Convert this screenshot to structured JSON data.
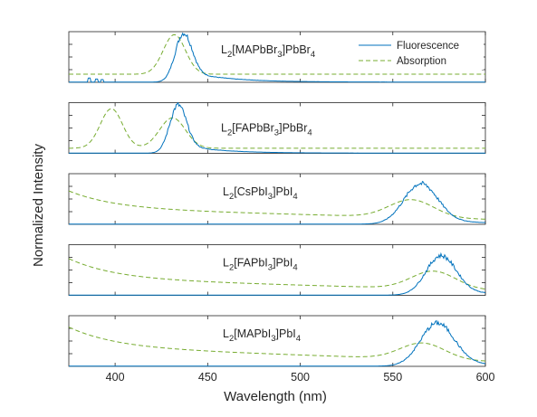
{
  "chart_data": {
    "type": "line",
    "ylabel": "Normalized Intensity",
    "xlabel": "Wavelength (nm)",
    "xlim": [
      375,
      600
    ],
    "xticks": [
      400,
      450,
      500,
      550,
      600
    ],
    "legend": {
      "position": "top-right",
      "entries": [
        "Fluorescence",
        "Absorption"
      ]
    },
    "colors": {
      "fluorescence": "#0072BD",
      "absorption": "#77AC30"
    },
    "panels": [
      {
        "label": {
          "pre": "L",
          "s1": "2",
          "mid": "[MAPbBr",
          "s2": "3",
          "post": "]PbBr",
          "s3": "4"
        },
        "absorption": {
          "baseline": 0.16,
          "peaks": [
            [
              432,
              0.78,
              6
            ]
          ],
          "slope": 0.0,
          "uv": 0.0,
          "noise": 0.0
        },
        "fluorescence": {
          "peaks": [
            [
              437,
              0.97,
              4.5
            ]
          ],
          "tail": 0.22,
          "tailDecay": 22,
          "spikes": [
            [
              386,
              0.08
            ],
            [
              390,
              0.06
            ],
            [
              393,
              0.05
            ]
          ]
        }
      },
      {
        "label": {
          "pre": "L",
          "s1": "2",
          "mid": "[FAPbBr",
          "s2": "3",
          "post": "]PbBr",
          "s3": "4"
        },
        "absorption": {
          "baseline": 0.1,
          "peaks": [
            [
              398,
              0.78,
              6
            ],
            [
              431,
              0.6,
              7
            ]
          ],
          "slope": 0.0,
          "uv": 0.0,
          "noise": 0.0
        },
        "fluorescence": {
          "peaks": [
            [
              434,
              0.95,
              4.5
            ]
          ],
          "tail": 0.18,
          "tailDecay": 20,
          "spikes": []
        }
      },
      {
        "label": {
          "pre": "L",
          "s1": "2",
          "mid": "[CsPbI",
          "s2": "3",
          "post": "]PbI",
          "s3": "4"
        },
        "absorption": {
          "baseline": 0.1,
          "peaks": [
            [
              560,
              0.35,
              12
            ]
          ],
          "slope": 0.42,
          "uv": 0.35,
          "noise": 0.0
        },
        "fluorescence": {
          "peaks": [
            [
              565,
              0.8,
              9
            ]
          ],
          "tail": 0.12,
          "tailDecay": 25,
          "spikes": []
        }
      },
      {
        "label": {
          "pre": "L",
          "s1": "2",
          "mid": "[FAPbI",
          "s2": "3",
          "post": "]PbI",
          "s3": "4"
        },
        "absorption": {
          "baseline": 0.1,
          "peaks": [
            [
              572,
              0.35,
              12
            ]
          ],
          "slope": 0.45,
          "uv": 0.4,
          "noise": 0.0
        },
        "fluorescence": {
          "peaks": [
            [
              576,
              0.78,
              8
            ]
          ],
          "tail": 0.12,
          "tailDecay": 22,
          "spikes": []
        }
      },
      {
        "label": {
          "pre": "L",
          "s1": "2",
          "mid": "[MAPbI",
          "s2": "3",
          "post": "]PbI",
          "s3": "4"
        },
        "absorption": {
          "baseline": 0.1,
          "peaks": [
            [
              566,
              0.32,
              12
            ]
          ],
          "slope": 0.55,
          "uv": 0.4,
          "noise": 0.0
        },
        "fluorescence": {
          "peaks": [
            [
              574,
              0.85,
              9
            ]
          ],
          "tail": 0.12,
          "tailDecay": 22,
          "spikes": []
        }
      }
    ]
  }
}
